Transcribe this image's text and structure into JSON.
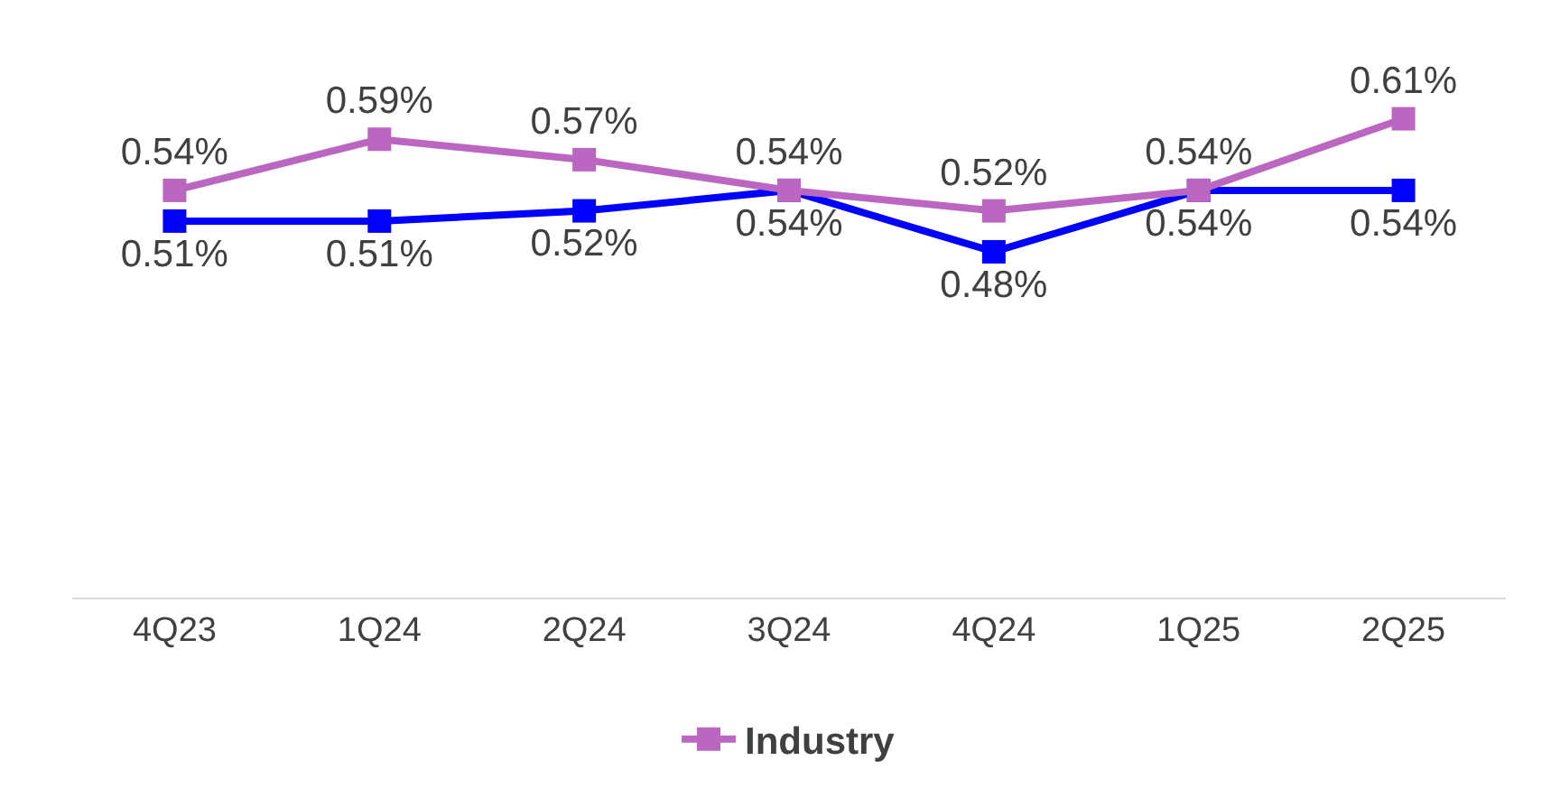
{
  "chart_data": {
    "type": "line",
    "categories": [
      "4Q23",
      "1Q24",
      "2Q24",
      "3Q24",
      "4Q24",
      "1Q25",
      "2Q25"
    ],
    "series": [
      {
        "color": "#0000ff",
        "values": [
          0.51,
          0.51,
          0.52,
          0.54,
          0.48,
          0.54,
          0.54
        ],
        "value_labels": [
          "0.51%",
          "0.51%",
          "0.52%",
          "0.54%",
          "0.48%",
          "0.54%",
          "0.54%"
        ]
      },
      {
        "name": "Industry",
        "color": "#bb66c0",
        "values": [
          0.54,
          0.59,
          0.57,
          0.54,
          0.52,
          0.54,
          0.61
        ],
        "value_labels": [
          "0.54%",
          "0.59%",
          "0.57%",
          "0.54%",
          "0.52%",
          "0.54%",
          "0.61%"
        ]
      }
    ],
    "marker": "square",
    "legend": "bottom"
  }
}
